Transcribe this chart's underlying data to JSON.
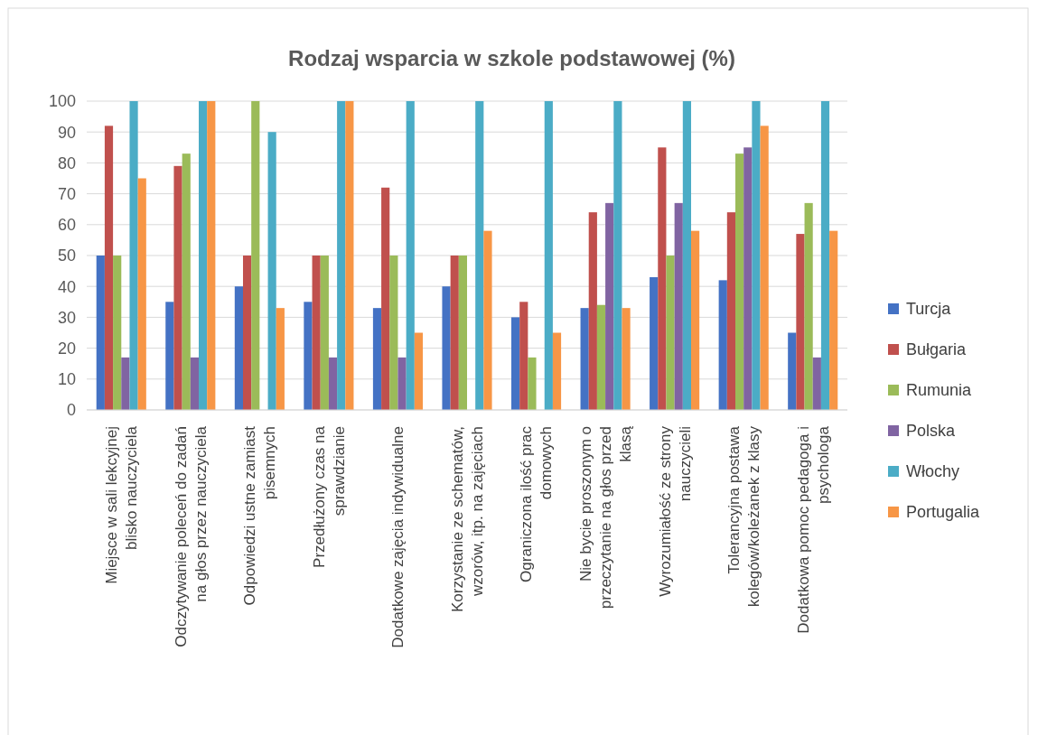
{
  "chart_data": {
    "type": "bar",
    "title": "Rodzaj wsparcia w szkole podstawowej (%)",
    "categories": [
      "Miejsce w sali lekcyjnej blisko nauczyciela",
      "Odczytywanie poleceń do zadań na głos przez nauczyciela",
      "Odpowiedzi ustne zamiast pisemnych",
      "Przedłużony czas na sprawdzianie",
      "Dodatkowe zajęcia indywidualne",
      "Korzystanie ze schematów, wzorów, itp. na zajęciach",
      "Ograniczona ilość prac domowych",
      "Nie bycie proszonym o przeczytanie na głos przed klasą",
      "Wyrozumiałość ze strony nauczycieli",
      "Tolerancyjna postawa kolegów/koleżanek z klasy",
      "Dodatkowa pomoc pedagoga i psychologa"
    ],
    "series": [
      {
        "name": "Turcja",
        "color": "#4472c4",
        "values": [
          50,
          35,
          40,
          35,
          33,
          40,
          30,
          33,
          43,
          42,
          25
        ]
      },
      {
        "name": "Bułgaria",
        "color": "#c0504d",
        "values": [
          92,
          79,
          50,
          50,
          72,
          50,
          35,
          64,
          85,
          64,
          57
        ]
      },
      {
        "name": "Rumunia",
        "color": "#9bbb59",
        "values": [
          50,
          83,
          100,
          50,
          50,
          50,
          17,
          34,
          50,
          83,
          67
        ]
      },
      {
        "name": "Polska",
        "color": "#8064a2",
        "values": [
          17,
          17,
          0,
          17,
          17,
          0,
          0,
          67,
          67,
          85,
          17
        ]
      },
      {
        "name": "Włochy",
        "color": "#4bacc6",
        "values": [
          100,
          100,
          90,
          100,
          100,
          100,
          100,
          100,
          100,
          100,
          100
        ]
      },
      {
        "name": "Portugalia",
        "color": "#f79646",
        "values": [
          75,
          100,
          33,
          100,
          25,
          58,
          25,
          33,
          58,
          92,
          58
        ]
      }
    ],
    "ylim": [
      0,
      100
    ],
    "yticks": [
      0,
      10,
      20,
      30,
      40,
      50,
      60,
      70,
      80,
      90,
      100
    ],
    "grid": "y",
    "legend": "right"
  }
}
